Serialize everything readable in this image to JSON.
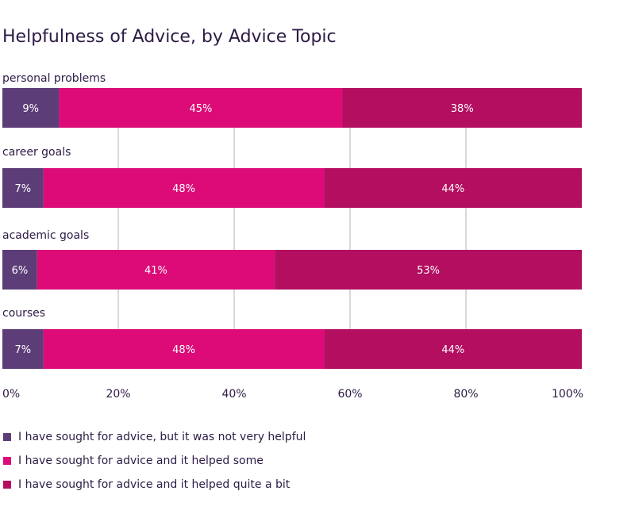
{
  "chart_data": {
    "type": "bar",
    "orientation": "horizontal",
    "stacked": true,
    "title": "Helpfulness of Advice, by Advice Topic",
    "categories": [
      "personal problems",
      "career goals",
      "academic goals",
      "courses"
    ],
    "series": [
      {
        "name": "I have sought for advice, but it was not very helpful",
        "color": "#5c3d78",
        "values": [
          9,
          7,
          6,
          7
        ]
      },
      {
        "name": "I have sought for advice and it helped some",
        "color": "#dc0b78",
        "values": [
          45,
          48,
          41,
          48
        ]
      },
      {
        "name": "I have sought for advice and it helped quite a bit",
        "color": "#b30e60",
        "values": [
          38,
          44,
          53,
          44
        ]
      }
    ],
    "data_labels": [
      [
        "9%",
        "45%",
        "38%"
      ],
      [
        "7%",
        "48%",
        "44%"
      ],
      [
        "6%",
        "41%",
        "53%"
      ],
      [
        "7%",
        "48%",
        "44%"
      ]
    ],
    "x_ticks": [
      "0%",
      "20%",
      "40%",
      "60%",
      "80%",
      "100%"
    ],
    "xlim": [
      0,
      100
    ],
    "grid": true,
    "legend_position": "bottom-left"
  }
}
